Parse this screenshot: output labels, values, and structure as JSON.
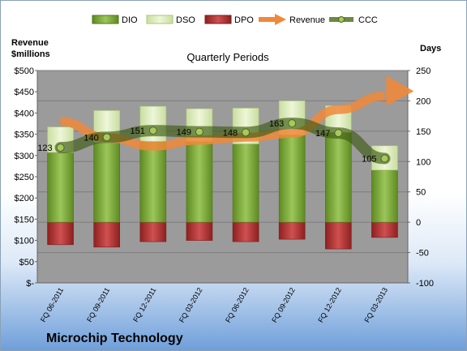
{
  "chart_data": {
    "type": "bar",
    "title": "Quarterly Periods",
    "company": "Microchip Technology",
    "left_axis": {
      "title_line1": "Revenue",
      "title_line2": "$millions",
      "ylim": [
        0,
        500
      ],
      "ticks": [
        "$-",
        "$50",
        "$100",
        "$150",
        "$200",
        "$250",
        "$300",
        "$350",
        "$400",
        "$450",
        "$500"
      ]
    },
    "right_axis": {
      "title": "Days",
      "ylim": [
        -100,
        250
      ],
      "ticks": [
        "-100",
        "-50",
        "0",
        "50",
        "100",
        "150",
        "200",
        "250"
      ]
    },
    "categories": [
      "FQ 06-2011",
      "FQ 09-2011",
      "FQ 12-2011",
      "FQ 03-2012",
      "FQ 06-2012",
      "FQ 09-2012",
      "FQ 12-2012",
      "FQ 03-2013"
    ],
    "legend": [
      "DIO",
      "DSO",
      "DPO",
      "Revenue",
      "CCC"
    ],
    "legend_position": "top",
    "series": [
      {
        "name": "DIO",
        "axis": "right",
        "values": [
          115,
          131,
          133,
          133,
          129,
          144,
          148,
          86
        ],
        "color": "#79a33a"
      },
      {
        "name": "DSO",
        "axis": "right",
        "values": [
          42,
          53,
          58,
          54,
          59,
          56,
          44,
          40
        ],
        "color": "#dcebbb"
      },
      {
        "name": "DPO",
        "axis": "right",
        "values": [
          -37,
          -41,
          -32,
          -30,
          -32,
          -28,
          -44,
          -25
        ],
        "color": "#b23535"
      },
      {
        "name": "Revenue",
        "axis": "left",
        "values": [
          380,
          342,
          322,
          336,
          343,
          352,
          408,
          440
        ],
        "color": "#f0883a"
      },
      {
        "name": "CCC",
        "axis": "right",
        "values": [
          123,
          140,
          151,
          149,
          148,
          163,
          147,
          105
        ],
        "labels": [
          "123",
          "140",
          "151",
          "149",
          "148",
          "163",
          "147",
          "105"
        ],
        "color": "#5d7a1e"
      }
    ],
    "colors": {
      "plot_bg": "#9b9b9b",
      "grid": "#7d7d7d"
    },
    "grid": true
  }
}
